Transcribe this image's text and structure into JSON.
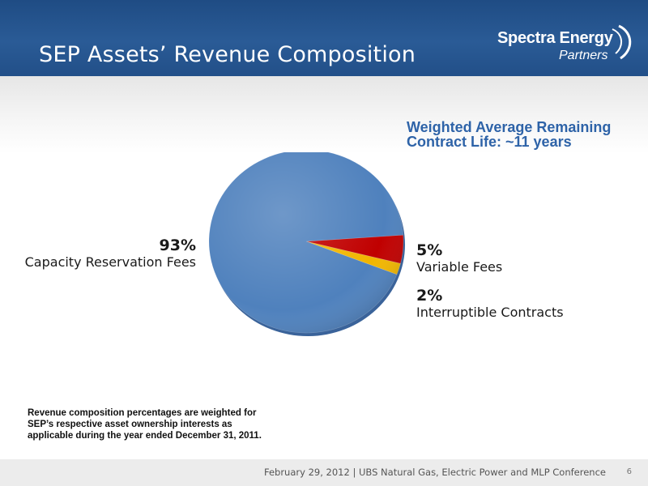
{
  "header": {
    "title": "SEP Assets’ Revenue Composition",
    "logo_main": "Spectra Energy",
    "logo_sub": "Partners"
  },
  "note": {
    "text": "Weighted Average Remaining Contract Life: ~11 years"
  },
  "chart_data": {
    "type": "pie",
    "title": "",
    "slices": [
      {
        "label": "Capacity Reservation Fees",
        "value": 93,
        "value_label": "93%",
        "color": "#4f81bd"
      },
      {
        "label": "Variable Fees",
        "value": 5,
        "value_label": "5%",
        "color": "#c00000"
      },
      {
        "label": "Interruptible Contracts",
        "value": 2,
        "value_label": "2%",
        "color": "#f2b600"
      }
    ]
  },
  "footnote": "Revenue composition percentages are weighted for SEP’s respective asset ownership interests as applicable during the year ended December 31, 2011.",
  "footer": {
    "text": "February 29, 2012  | UBS Natural Gas, Electric Power and MLP Conference",
    "page_number": "6"
  },
  "colors": {
    "header_bg": "#2a5b96",
    "note_text": "#2e63a8",
    "footer_bg": "#ececec"
  }
}
